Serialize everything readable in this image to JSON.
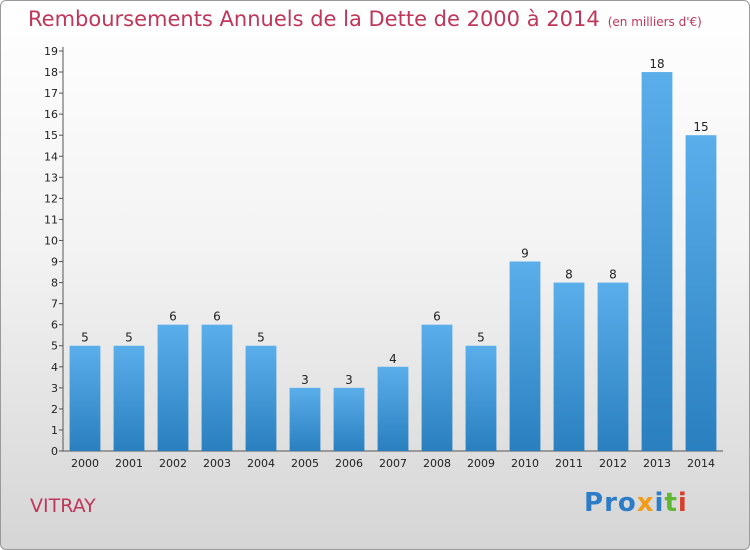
{
  "header": {
    "title": "Remboursements Annuels de la Dette de 2000 à 2014",
    "unit": "(en milliers d'€)"
  },
  "footer": {
    "city": "VITRAY",
    "logo": "Proxiti",
    "logo_letters": [
      {
        "ch": "P",
        "color": "#2c7cc8"
      },
      {
        "ch": "r",
        "color": "#2c7cc8"
      },
      {
        "ch": "o",
        "color": "#2c7cc8"
      },
      {
        "ch": "x",
        "color": "#f29c19"
      },
      {
        "ch": "i",
        "color": "#2c7cc8"
      },
      {
        "ch": "t",
        "color": "#5fb832"
      },
      {
        "ch": "i",
        "color": "#d8402c"
      }
    ]
  },
  "colors": {
    "title": "#c0365a",
    "bar_light": "#5aaeea",
    "bar_dark": "#2a7fbf"
  },
  "chart_data": {
    "type": "bar",
    "title": "Remboursements Annuels de la Dette de 2000 à 2014",
    "subtitle": "(en milliers d'€)",
    "categories": [
      "2000",
      "2001",
      "2002",
      "2003",
      "2004",
      "2005",
      "2006",
      "2007",
      "2008",
      "2009",
      "2010",
      "2011",
      "2012",
      "2013",
      "2014"
    ],
    "values": [
      5,
      5,
      6,
      6,
      5,
      3,
      3,
      4,
      6,
      5,
      9,
      8,
      8,
      18,
      15
    ],
    "ylim": [
      0,
      19
    ],
    "yticks": [
      0,
      1,
      2,
      3,
      4,
      5,
      6,
      7,
      8,
      9,
      10,
      11,
      12,
      13,
      14,
      15,
      16,
      17,
      18,
      19
    ],
    "grid": false,
    "xlabel": "",
    "ylabel": ""
  }
}
